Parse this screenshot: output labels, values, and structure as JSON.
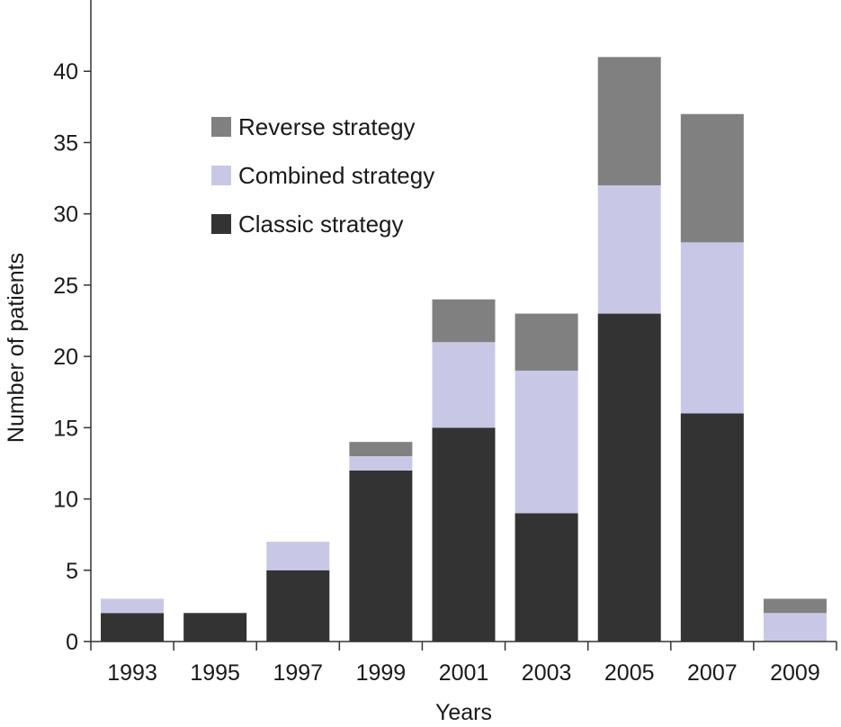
{
  "chart_data": {
    "type": "bar",
    "stacked": true,
    "title": "",
    "xlabel": "Years",
    "ylabel": "Number of patients",
    "categories": [
      "1993",
      "1995",
      "1997",
      "1999",
      "2001",
      "2003",
      "2005",
      "2007",
      "2009"
    ],
    "ylim": [
      0,
      45
    ],
    "yticks": [
      0,
      5,
      10,
      15,
      20,
      25,
      30,
      35,
      40
    ],
    "series": [
      {
        "name": "Classic strategy",
        "color": "#333333",
        "values": [
          2,
          2,
          5,
          12,
          15,
          9,
          23,
          16,
          0
        ]
      },
      {
        "name": "Combined strategy",
        "color": "#c8c8e6",
        "values": [
          1,
          0,
          2,
          1,
          6,
          10,
          9,
          12,
          2
        ]
      },
      {
        "name": "Reverse strategy",
        "color": "#808080",
        "values": [
          0,
          0,
          0,
          1,
          3,
          4,
          9,
          9,
          1
        ]
      }
    ],
    "legend_order": [
      "Reverse strategy",
      "Combined strategy",
      "Classic strategy"
    ],
    "legend_position": "top-left",
    "grid": false
  }
}
